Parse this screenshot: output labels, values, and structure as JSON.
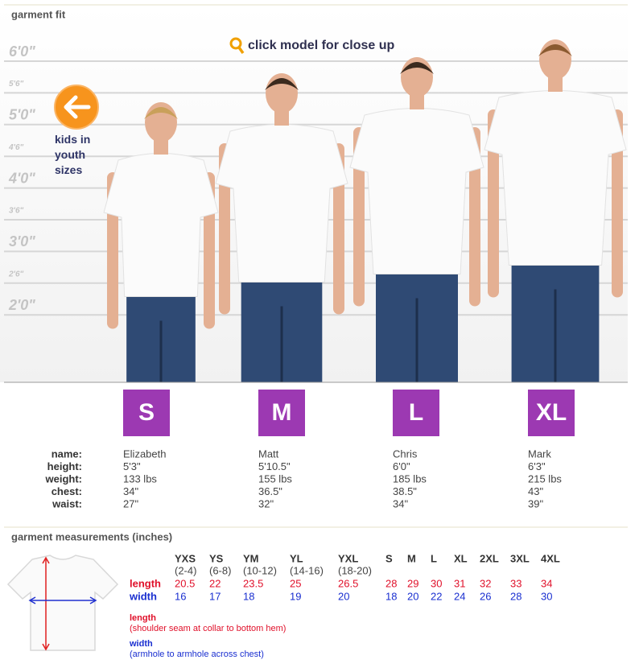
{
  "section_title": "garment fit",
  "height_marks": [
    "6'0\"",
    "5'6\"",
    "5'0\"",
    "4'6\"",
    "4'0\"",
    "3'6\"",
    "3'0\"",
    "2'6\"",
    "2'0\""
  ],
  "close_up_hint": "click model for close up",
  "kids_link": "kids in youth sizes",
  "stat_labels": [
    "name:",
    "height:",
    "weight:",
    "chest:",
    "waist:"
  ],
  "models": [
    {
      "size": "S",
      "name": "Elizabeth",
      "height": "5'3\"",
      "weight": "133 lbs",
      "chest": "34\"",
      "waist": "27\""
    },
    {
      "size": "M",
      "name": "Matt",
      "height": "5'10.5\"",
      "weight": "155 lbs",
      "chest": "36.5\"",
      "waist": "32\""
    },
    {
      "size": "L",
      "name": "Chris",
      "height": "6'0\"",
      "weight": "185 lbs",
      "chest": "38.5\"",
      "waist": "34\""
    },
    {
      "size": "XL",
      "name": "Mark",
      "height": "6'3\"",
      "weight": "215 lbs",
      "chest": "43\"",
      "waist": "39\""
    }
  ],
  "measurements": {
    "title": "garment measurements (inches)",
    "sizes": [
      {
        "label": "YXS",
        "range": "(2-4)"
      },
      {
        "label": "YS",
        "range": "(6-8)"
      },
      {
        "label": "YM",
        "range": "(10-12)"
      },
      {
        "label": "YL",
        "range": "(14-16)"
      },
      {
        "label": "YXL",
        "range": "(18-20)"
      },
      {
        "label": "S"
      },
      {
        "label": "M"
      },
      {
        "label": "L"
      },
      {
        "label": "XL"
      },
      {
        "label": "2XL"
      },
      {
        "label": "3XL"
      },
      {
        "label": "4XL"
      }
    ],
    "row_labels": [
      "length",
      "width"
    ],
    "length": [
      20.5,
      22,
      23.5,
      25,
      26.5,
      28,
      29,
      30,
      31,
      32,
      33,
      34
    ],
    "width": [
      16,
      17,
      18,
      19,
      20,
      18,
      20,
      22,
      24,
      26,
      28,
      30
    ],
    "notes": [
      {
        "term": "length",
        "desc": "(shoulder seam at collar to bottom hem)"
      },
      {
        "term": "width",
        "desc": "(armhole to armhole across chest)"
      }
    ]
  }
}
